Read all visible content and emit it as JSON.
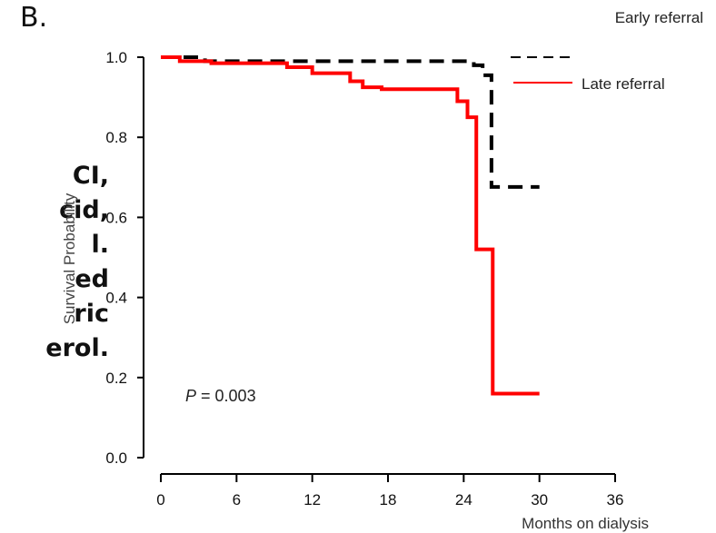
{
  "panel_label": "B.",
  "side_text_fragments": [
    "CI,",
    "cid,",
    "l.",
    "ed",
    "ric",
    "erol."
  ],
  "chart_data": {
    "type": "line",
    "title": "",
    "xlabel": "Months on dialysis",
    "ylabel": "Survival Probability",
    "xlim": [
      0,
      36
    ],
    "ylim": [
      0,
      1.0
    ],
    "x_ticks": [
      0,
      6,
      12,
      18,
      24,
      30,
      36
    ],
    "y_ticks": [
      0.0,
      0.2,
      0.4,
      0.6,
      0.8,
      1.0
    ],
    "x_tick_labels": [
      "0",
      "6",
      "12",
      "18",
      "24",
      "30",
      "36"
    ],
    "y_tick_labels": [
      "0.0",
      "0.2",
      "0.4",
      "0.6",
      "0.8",
      "1.0"
    ],
    "grid": false,
    "legend_placement": "top-right",
    "annotation": {
      "prefix": "P",
      "text": " = 0.003"
    },
    "series": [
      {
        "name": "Early referral",
        "style": "dashed",
        "color": "#000000",
        "step": true,
        "x": [
          0,
          3.5,
          24.8,
          25.5,
          26.2,
          30
        ],
        "y": [
          1.0,
          0.99,
          0.98,
          0.955,
          0.676,
          0.676
        ]
      },
      {
        "name": "Late referral",
        "style": "solid",
        "color": "#ff0000",
        "step": true,
        "x": [
          0,
          1.5,
          4,
          10,
          12,
          15,
          16,
          17.5,
          23.5,
          24.3,
          25,
          25.7,
          26.3,
          30
        ],
        "y": [
          1.0,
          0.99,
          0.985,
          0.975,
          0.96,
          0.94,
          0.925,
          0.92,
          0.89,
          0.85,
          0.52,
          0.52,
          0.16,
          0.16
        ]
      }
    ]
  }
}
